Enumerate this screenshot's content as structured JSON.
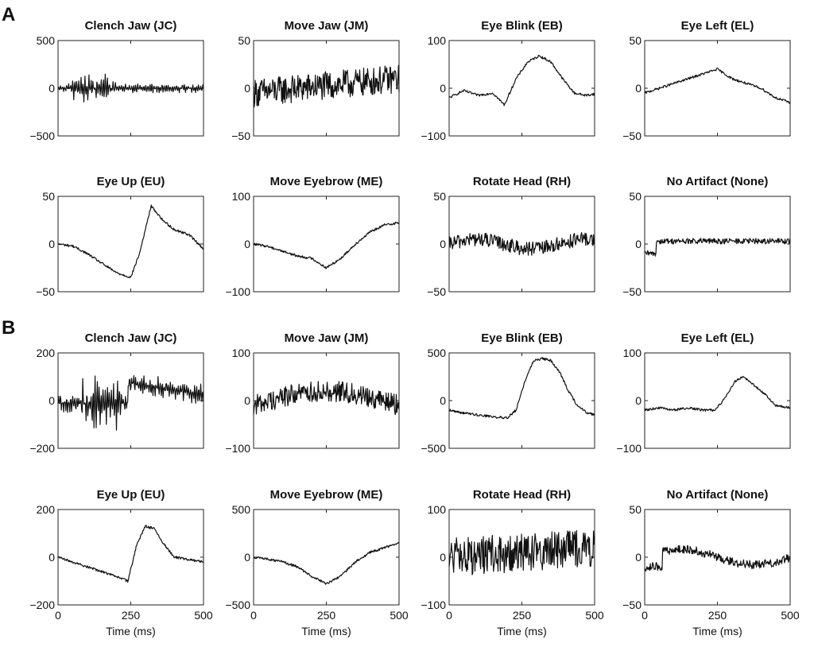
{
  "panel_labels": [
    "A",
    "B"
  ],
  "chart_data": [
    {
      "panel": "A",
      "row": 0,
      "col": 0,
      "type": "line",
      "title": "Clench Jaw (JC)",
      "ylim": [
        -500,
        500
      ],
      "yticks": [
        "500",
        "0",
        "−500"
      ],
      "xlim": [
        0,
        500
      ],
      "signal": "emg_burst"
    },
    {
      "panel": "A",
      "row": 0,
      "col": 1,
      "type": "line",
      "title": "Move Jaw (JM)",
      "ylim": [
        -50,
        50
      ],
      "yticks": [
        "50",
        "0",
        "−50"
      ],
      "xlim": [
        0,
        500
      ],
      "signal": "noisy_rising"
    },
    {
      "panel": "A",
      "row": 0,
      "col": 2,
      "type": "line",
      "title": "Eye Blink (EB)",
      "ylim": [
        -100,
        100
      ],
      "yticks": [
        "100",
        "0",
        "−100"
      ],
      "xlim": [
        0,
        500
      ],
      "signal": "blink",
      "x": [
        0,
        50,
        100,
        150,
        190,
        230,
        270,
        310,
        350,
        390,
        430,
        470,
        500
      ],
      "y": [
        -20,
        -5,
        -15,
        -10,
        -35,
        20,
        55,
        68,
        55,
        20,
        -10,
        -15,
        -12
      ]
    },
    {
      "panel": "A",
      "row": 0,
      "col": 3,
      "type": "line",
      "title": "Eye Left (EL)",
      "ylim": [
        -50,
        50
      ],
      "yticks": [
        "50",
        "0",
        "−50"
      ],
      "xlim": [
        0,
        500
      ],
      "signal": "wavy",
      "x": [
        0,
        50,
        100,
        150,
        200,
        250,
        300,
        350,
        400,
        450,
        500
      ],
      "y": [
        -5,
        0,
        5,
        10,
        15,
        20,
        10,
        5,
        0,
        -10,
        -15
      ]
    },
    {
      "panel": "A",
      "row": 1,
      "col": 0,
      "type": "line",
      "title": "Eye Up (EU)",
      "ylim": [
        -50,
        50
      ],
      "yticks": [
        "50",
        "0",
        "−50"
      ],
      "xlim": [
        0,
        500
      ],
      "signal": "eye_up",
      "x": [
        0,
        50,
        100,
        150,
        200,
        250,
        280,
        320,
        360,
        400,
        450,
        500
      ],
      "y": [
        0,
        -2,
        -10,
        -20,
        -30,
        -35,
        -10,
        40,
        25,
        15,
        10,
        -5
      ]
    },
    {
      "panel": "A",
      "row": 1,
      "col": 1,
      "type": "line",
      "title": "Move Eyebrow (ME)",
      "ylim": [
        -100,
        100
      ],
      "yticks": [
        "100",
        "0",
        "−100"
      ],
      "xlim": [
        0,
        500
      ],
      "signal": "eyebrow",
      "x": [
        0,
        50,
        100,
        150,
        200,
        250,
        300,
        350,
        400,
        450,
        500
      ],
      "y": [
        0,
        -5,
        -15,
        -25,
        -30,
        -50,
        -30,
        0,
        25,
        40,
        45
      ]
    },
    {
      "panel": "A",
      "row": 1,
      "col": 2,
      "type": "line",
      "title": "Rotate Head (RH)",
      "ylim": [
        -50,
        50
      ],
      "yticks": [
        "50",
        "0",
        "−50"
      ],
      "xlim": [
        0,
        500
      ],
      "signal": "noisy_flat"
    },
    {
      "panel": "A",
      "row": 1,
      "col": 3,
      "type": "line",
      "title": "No Artifact (None)",
      "ylim": [
        -50,
        50
      ],
      "yticks": [
        "50",
        "0",
        "−50"
      ],
      "xlim": [
        0,
        500
      ],
      "signal": "baseline"
    },
    {
      "panel": "B",
      "row": 0,
      "col": 0,
      "type": "line",
      "title": "Clench Jaw (JC)",
      "ylim": [
        -200,
        200
      ],
      "yticks": [
        "200",
        "0",
        "−200"
      ],
      "xlim": [
        0,
        500
      ],
      "signal": "emg_burst"
    },
    {
      "panel": "B",
      "row": 0,
      "col": 1,
      "type": "line",
      "title": "Move Jaw (JM)",
      "ylim": [
        -100,
        100
      ],
      "yticks": [
        "100",
        "0",
        "−100"
      ],
      "xlim": [
        0,
        500
      ],
      "signal": "noisy_arc"
    },
    {
      "panel": "B",
      "row": 0,
      "col": 2,
      "type": "line",
      "title": "Eye Blink (EB)",
      "ylim": [
        -500,
        500
      ],
      "yticks": [
        "500",
        "0",
        "−500"
      ],
      "xlim": [
        0,
        500
      ],
      "signal": "blink",
      "x": [
        0,
        50,
        100,
        150,
        200,
        230,
        260,
        290,
        320,
        350,
        380,
        410,
        440,
        470,
        500
      ],
      "y": [
        -100,
        -130,
        -150,
        -170,
        -180,
        -100,
        200,
        420,
        440,
        420,
        300,
        100,
        -50,
        -120,
        -150
      ]
    },
    {
      "panel": "B",
      "row": 0,
      "col": 3,
      "type": "line",
      "title": "Eye Left (EL)",
      "ylim": [
        -100,
        100
      ],
      "yticks": [
        "100",
        "0",
        "−100"
      ],
      "xlim": [
        0,
        500
      ],
      "signal": "eye_left",
      "x": [
        0,
        50,
        100,
        150,
        200,
        240,
        270,
        310,
        340,
        370,
        410,
        450,
        500
      ],
      "y": [
        -20,
        -15,
        -20,
        -15,
        -20,
        -20,
        0,
        40,
        50,
        35,
        15,
        -10,
        -15
      ]
    },
    {
      "panel": "B",
      "row": 1,
      "col": 0,
      "type": "line",
      "title": "Eye Up (EU)",
      "ylim": [
        -200,
        200
      ],
      "yticks": [
        "200",
        "0",
        "−200"
      ],
      "xlim": [
        0,
        500
      ],
      "signal": "eye_up",
      "x": [
        0,
        50,
        100,
        150,
        200,
        240,
        270,
        300,
        330,
        360,
        400,
        450,
        500
      ],
      "y": [
        0,
        -20,
        -40,
        -60,
        -80,
        -100,
        50,
        130,
        120,
        60,
        0,
        -10,
        -20
      ]
    },
    {
      "panel": "B",
      "row": 1,
      "col": 1,
      "type": "line",
      "title": "Move Eyebrow (ME)",
      "ylim": [
        -500,
        500
      ],
      "yticks": [
        "500",
        "0",
        "−500"
      ],
      "xlim": [
        0,
        500
      ],
      "signal": "eyebrow",
      "x": [
        0,
        50,
        100,
        150,
        200,
        250,
        300,
        350,
        400,
        450,
        500
      ],
      "y": [
        0,
        -20,
        -50,
        -100,
        -200,
        -280,
        -200,
        -50,
        50,
        100,
        150
      ]
    },
    {
      "panel": "B",
      "row": 1,
      "col": 2,
      "type": "line",
      "title": "Rotate Head (RH)",
      "ylim": [
        -100,
        100
      ],
      "yticks": [
        "100",
        "0",
        "−100"
      ],
      "xlim": [
        0,
        500
      ],
      "signal": "big_noise"
    },
    {
      "panel": "B",
      "row": 1,
      "col": 3,
      "type": "line",
      "title": "No Artifact (None)",
      "ylim": [
        -50,
        50
      ],
      "yticks": [
        "50",
        "0",
        "−50"
      ],
      "xlim": [
        0,
        500
      ],
      "signal": "baseline_bump"
    }
  ],
  "xticks": [
    "0",
    "250",
    "500"
  ],
  "xlabel": "Time (ms)",
  "style": {
    "line_color": "#111111",
    "axis_color": "#222222"
  }
}
